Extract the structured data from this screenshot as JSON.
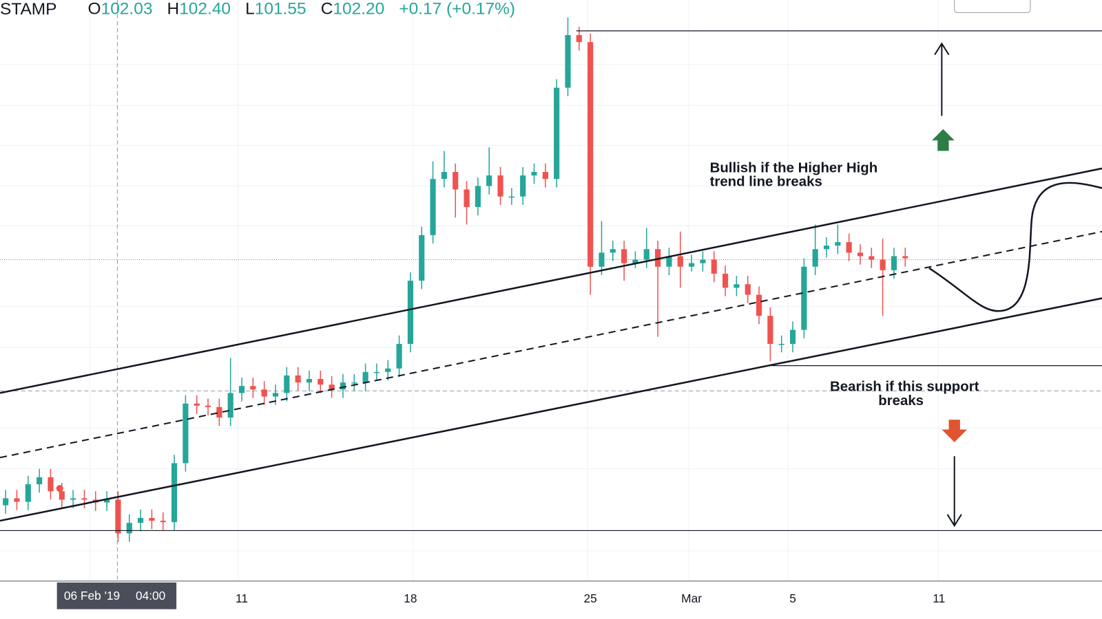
{
  "header": {
    "symbol": "STAMP",
    "open_label": "O",
    "open": "102.03",
    "high_label": "H",
    "high": "102.40",
    "low_label": "L",
    "low": "101.55",
    "close_label": "C",
    "close": "102.20",
    "change": "+0.17 (+0.17%)"
  },
  "annotations": {
    "bullish": [
      "Bullish if the Higher High",
      "trend line breaks"
    ],
    "bearish": [
      "Bearish if this support",
      "breaks"
    ]
  },
  "crosshair": {
    "date": "06 Feb '19",
    "time": "04:00"
  },
  "chart_data": {
    "type": "candlestick",
    "up_color": "#26a69a",
    "down_color": "#ef5350",
    "ylim": [
      101.4,
      109.7
    ],
    "categories": [
      null,
      null,
      null,
      null,
      null,
      null,
      null,
      null,
      null,
      null,
      null,
      null,
      null,
      null,
      null,
      null,
      null,
      null,
      null,
      null,
      null,
      "11",
      null,
      null,
      null,
      null,
      null,
      null,
      null,
      null,
      null,
      null,
      null,
      null,
      null,
      null,
      "18",
      null,
      null,
      null,
      null,
      null,
      null,
      null,
      null,
      null,
      null,
      null,
      null,
      null,
      null,
      null,
      "25",
      null,
      null,
      null,
      null,
      null,
      null,
      null,
      null,
      "Mar",
      null,
      null,
      null,
      null,
      null,
      null,
      null,
      null,
      "5",
      null,
      null,
      null,
      null,
      null,
      null,
      null,
      null,
      null,
      null,
      null,
      null,
      "11"
    ],
    "open": [
      102.5,
      102.6,
      102.55,
      102.8,
      102.9,
      102.7,
      102.58,
      102.6,
      102.58,
      102.54,
      102.58,
      102.1,
      102.25,
      102.32,
      102.28,
      102.26,
      103.1,
      103.95,
      103.92,
      103.9,
      103.75,
      104.1,
      104.2,
      104.15,
      104.05,
      104.1,
      104.35,
      104.25,
      104.3,
      104.22,
      104.15,
      104.25,
      104.25,
      104.4,
      104.4,
      104.45,
      104.8,
      105.7,
      106.35,
      107.15,
      107.25,
      107,
      106.75,
      107.05,
      107.2,
      106.9,
      106.9,
      107.2,
      107.25,
      107.15,
      108.45,
      109.2,
      109.1,
      105.9,
      106.1,
      106.15,
      105.95,
      106,
      106.15,
      105.9,
      106.05,
      105.9,
      105.95,
      106,
      105.8,
      105.6,
      105.65,
      105.5,
      105.2,
      104.8,
      104.8,
      105,
      105.9,
      106.15,
      106.2,
      106.25,
      106.1,
      106.05,
      106,
      105.85,
      106.05,
      null,
      null,
      null
    ],
    "high": [
      102.72,
      102.72,
      102.92,
      103.02,
      103.02,
      102.82,
      102.72,
      102.72,
      102.7,
      102.7,
      102.7,
      102.37,
      102.44,
      102.44,
      102.4,
      103.22,
      104.07,
      104.07,
      104.02,
      104.02,
      104.6,
      104.32,
      104.32,
      104.27,
      104.22,
      104.47,
      104.47,
      104.42,
      104.42,
      104.34,
      104.37,
      104.37,
      104.52,
      104.52,
      104.57,
      104.92,
      105.82,
      106.47,
      107.4,
      107.55,
      107.37,
      107.12,
      107.17,
      107.6,
      107.32,
      107.02,
      107.32,
      107.37,
      107.37,
      108.57,
      109.45,
      109.32,
      109.22,
      106.55,
      106.27,
      106.27,
      106.12,
      106.45,
      106.27,
      106.17,
      106.4,
      106.07,
      106.12,
      106.12,
      105.92,
      105.77,
      105.77,
      105.62,
      105.32,
      104.92,
      105.12,
      106.02,
      106.5,
      106.32,
      106.5,
      106.37,
      106.22,
      106.17,
      106.3,
      106.17,
      106.17,
      null,
      null,
      null
    ],
    "low": [
      102.38,
      102.43,
      102.43,
      102.68,
      102.58,
      102.46,
      102.46,
      102.46,
      102.42,
      102.42,
      101.98,
      101.98,
      102.13,
      102.16,
      102.14,
      102.14,
      102.98,
      103.8,
      103.78,
      103.63,
      103.63,
      103.98,
      104.03,
      103.93,
      103.93,
      103.98,
      104.13,
      104.13,
      104.1,
      104.03,
      104.03,
      104.13,
      104.13,
      104.28,
      104.28,
      104.33,
      104.68,
      105.58,
      106.23,
      107.03,
      106.6,
      106.5,
      106.63,
      106.93,
      106.78,
      106.78,
      106.78,
      107.08,
      107.03,
      107.03,
      108.33,
      108.98,
      105.5,
      105.78,
      105.98,
      105.7,
      105.88,
      105.88,
      104.9,
      105.78,
      105.6,
      105.83,
      105.83,
      105.68,
      105.48,
      105.48,
      105.38,
      105.08,
      104.55,
      104.68,
      104.68,
      104.88,
      105.78,
      106.03,
      106.08,
      105.98,
      105.93,
      105.88,
      105.2,
      105.73,
      105.9,
      null,
      null,
      null
    ],
    "close": [
      102.6,
      102.55,
      102.8,
      102.9,
      102.7,
      102.58,
      102.6,
      102.58,
      102.54,
      102.58,
      102.1,
      102.25,
      102.32,
      102.28,
      102.26,
      103.1,
      103.95,
      103.92,
      103.9,
      103.75,
      104.1,
      104.2,
      104.15,
      104.05,
      104.1,
      104.35,
      104.25,
      104.3,
      104.22,
      104.15,
      104.25,
      104.25,
      104.4,
      104.4,
      104.45,
      104.8,
      105.7,
      106.35,
      107.15,
      107.25,
      107,
      106.75,
      107.05,
      107.2,
      106.9,
      106.9,
      107.2,
      107.25,
      107.15,
      108.45,
      109.2,
      109.1,
      105.9,
      106.1,
      106.15,
      105.95,
      106,
      106.15,
      105.9,
      106.05,
      105.9,
      105.95,
      106,
      105.8,
      105.6,
      105.65,
      105.5,
      105.2,
      104.8,
      104.8,
      105,
      105.9,
      106.15,
      106.2,
      106.25,
      106.1,
      106.05,
      106,
      105.85,
      106.05,
      106.02,
      null,
      null,
      null
    ]
  }
}
